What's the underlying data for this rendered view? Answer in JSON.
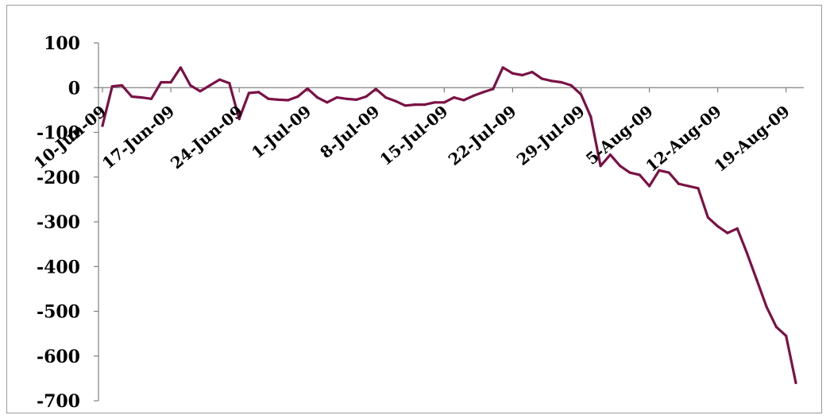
{
  "chart_data": {
    "type": "line",
    "title": "",
    "xlabel": "",
    "ylabel": "",
    "ylim": [
      -700,
      100
    ],
    "yticks": [
      100,
      0,
      -100,
      -200,
      -300,
      -400,
      -500,
      -600,
      -700
    ],
    "ytick_labels": [
      "100",
      "0",
      "-100",
      "-200",
      "-300",
      "-400",
      "-500",
      "-600",
      "-700"
    ],
    "xtick_labels": [
      "10-Jun-09",
      "17-Jun-09",
      "24-Jun-09",
      "1-Jul-09",
      "8-Jul-09",
      "15-Jul-09",
      "22-Jul-09",
      "29-Jul-09",
      "5-Aug-09",
      "12-Aug-09",
      "19-Aug-09"
    ],
    "grid": false,
    "legend": "none",
    "line_color": "#7b1145",
    "series": [
      {
        "values": [
          -85,
          3,
          5,
          -20,
          -22,
          -25,
          12,
          12,
          45,
          5,
          -8,
          5,
          18,
          10,
          -70,
          -12,
          -10,
          -25,
          -27,
          -28,
          -20,
          -2,
          -22,
          -33,
          -22,
          -25,
          -27,
          -20,
          -3,
          -22,
          -30,
          -40,
          -38,
          -38,
          -33,
          -33,
          -22,
          -28,
          -18,
          -10,
          -3,
          45,
          32,
          28,
          35,
          20,
          15,
          12,
          5,
          -15,
          -65,
          -175,
          -150,
          -175,
          -190,
          -195,
          -220,
          -185,
          -190,
          -215,
          -220,
          -225,
          -290,
          -310,
          -325,
          -315,
          -370,
          -430,
          -490,
          -535,
          -555,
          -660
        ]
      }
    ]
  }
}
